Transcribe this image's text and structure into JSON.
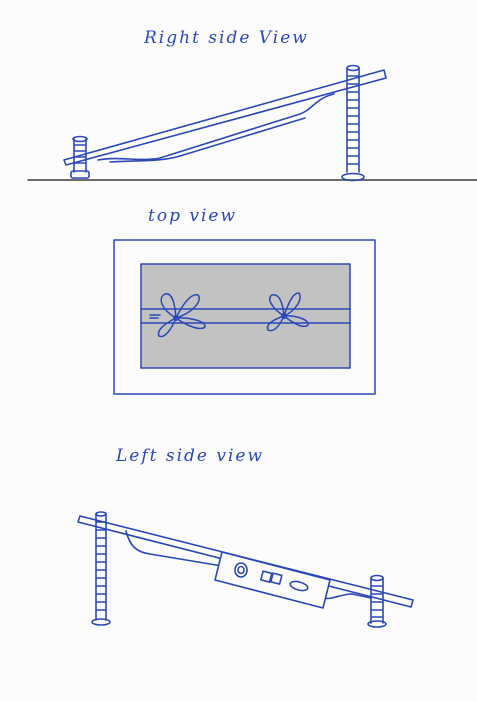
{
  "labels": {
    "right_side_view": "Right side View",
    "top_view": "top view",
    "left_side_view": "Left side view"
  },
  "colors": {
    "ink": "#2b48b8",
    "panel_fill": "#c2c2c2",
    "ground_line": "#3a3a3a",
    "background": "#fcfcfc"
  }
}
